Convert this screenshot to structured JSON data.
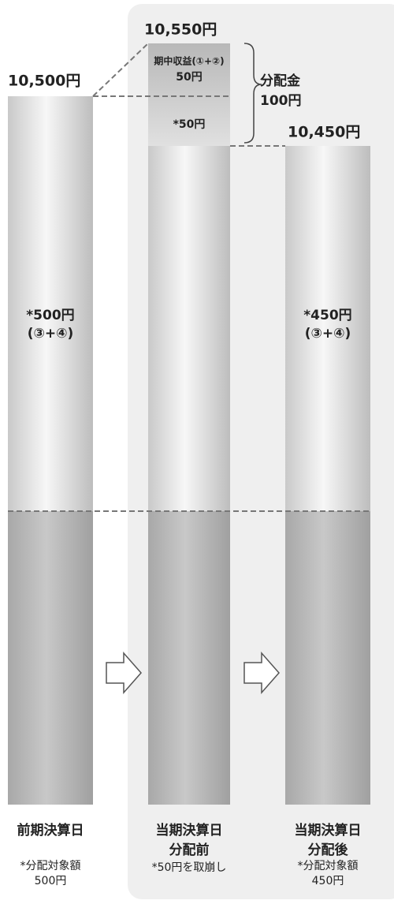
{
  "columns": [
    {
      "top_label": "10,500円",
      "body": [
        "*500円",
        "(③+④)"
      ],
      "footer": [
        "前期決算日"
      ],
      "note": [
        "*分配対象額",
        "500円"
      ]
    },
    {
      "top_label": "10,550円",
      "income": [
        "期中収益(①+②)",
        "50円"
      ],
      "drawdown": "*50円",
      "footer": [
        "当期決算日",
        "分配前"
      ],
      "note": [
        "*50円を取崩し"
      ]
    },
    {
      "top_label": "10,450円",
      "body": [
        "*450円",
        "(③+④)"
      ],
      "footer": [
        "当期決算日",
        "分配後"
      ],
      "note": [
        "*分配対象額",
        "450円"
      ]
    }
  ],
  "distribution": [
    "分配金",
    "100円"
  ]
}
